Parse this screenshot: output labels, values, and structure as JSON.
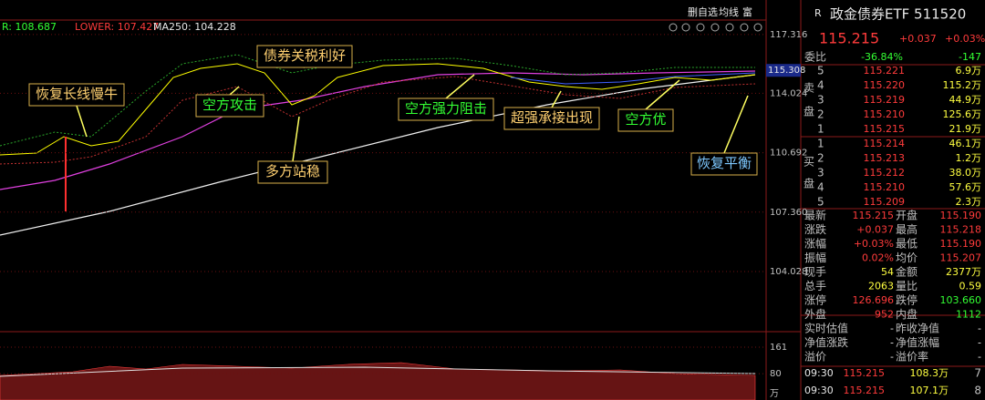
{
  "toolbar": [
    "删自选",
    "均线",
    "富"
  ],
  "chart": {
    "indicators": [
      "R: 108.687",
      "LOWER: 107.427",
      "MA250: 104.228"
    ],
    "ylim": [
      100.86,
      118.13
    ],
    "yticks": [
      117.316,
      114.024,
      110.692,
      {
        "value": 107.36,
        "label": "107.360"
      },
      104.028
    ],
    "current_price": 115.308,
    "volume_ylim": [
      0,
      161
    ],
    "volume_yticks": [
      161,
      80
    ],
    "volume_unit": "万",
    "annotations": [
      "恢复长线慢牛",
      "债券关税利好",
      "空方攻击",
      "多方站稳",
      "空方强力阻击",
      "超强承接出现",
      "空方优",
      "恢复平衡"
    ]
  },
  "panel": {
    "flag": "R",
    "title": "政金债券ETF 511520",
    "price": "115.215",
    "change": "+0.037",
    "change_pct": "+0.03%",
    "ratio": [
      "委比",
      "-36.84%",
      "-147"
    ],
    "ask_label": [
      "卖",
      "盘"
    ],
    "bid_label": [
      "买",
      "盘"
    ],
    "asks": [
      [
        "5",
        "115.221",
        "6.9万"
      ],
      [
        "4",
        "115.220",
        "115.2万"
      ],
      [
        "3",
        "115.219",
        "44.9万"
      ],
      [
        "2",
        "115.210",
        "125.6万"
      ],
      [
        "1",
        "115.215",
        "21.9万"
      ]
    ],
    "bids": [
      [
        "1",
        "115.214",
        "46.1万"
      ],
      [
        "2",
        "115.213",
        "1.2万"
      ],
      [
        "3",
        "115.212",
        "38.0万"
      ],
      [
        "4",
        "115.210",
        "57.6万"
      ],
      [
        "5",
        "115.209",
        "2.3万"
      ]
    ],
    "stats": [
      [
        "最新",
        "115.215",
        "开盘",
        "115.190"
      ],
      [
        "涨跌",
        "+0.037",
        "最高",
        "115.218"
      ],
      [
        "涨幅",
        "+0.03%",
        "最低",
        "115.190"
      ],
      [
        "振幅",
        "0.02%",
        "均价",
        "115.207"
      ],
      [
        "现手",
        "54",
        "金额",
        "2377万"
      ],
      [
        "总手",
        "2063",
        "量比",
        "0.59"
      ],
      [
        "涨停",
        "126.696",
        "跌停",
        "103.660"
      ],
      [
        "外盘",
        "952",
        "内盘",
        "1112"
      ]
    ],
    "nav": [
      [
        "实时估值",
        "-",
        "昨收净值",
        "-"
      ],
      [
        "净值涨跌",
        "-",
        "净值涨幅",
        "-"
      ],
      [
        "溢价",
        "-",
        "溢价率",
        "-"
      ]
    ],
    "trades": [
      [
        "09:30",
        "115.215",
        "108.3万",
        "7"
      ],
      [
        "09:30",
        "115.215",
        "107.1万",
        "8"
      ]
    ]
  }
}
